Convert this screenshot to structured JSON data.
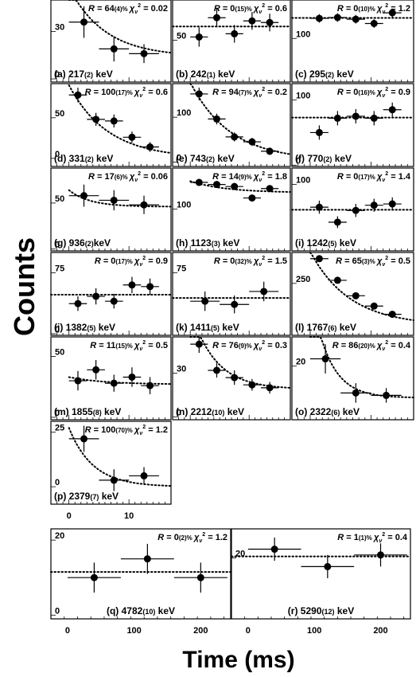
{
  "figure": {
    "ylabel": "Counts",
    "xlabel": "Time (ms)",
    "colors": {
      "frame": "#000000",
      "points": "#000000",
      "fit": "#000000",
      "background": "#ffffff"
    }
  },
  "chart_data": [
    {
      "id": "a",
      "type": "scatter",
      "label": "(a) 217(2) keV",
      "R": "64(4)%",
      "chi2": "0.02",
      "xlim": [
        -3,
        17
      ],
      "ylim": [
        -2,
        50
      ],
      "ytick_labels": [
        "0",
        "30"
      ],
      "yticks": [
        0,
        30
      ],
      "points": [
        {
          "x": 2.5,
          "y": 36,
          "xerr": 2.5,
          "yerr": 10
        },
        {
          "x": 7.5,
          "y": 19,
          "xerr": 2.5,
          "yerr": 8
        },
        {
          "x": 12.5,
          "y": 16,
          "xerr": 2.5,
          "yerr": 6
        }
      ],
      "fit": {
        "kind": "decay",
        "A": 44,
        "tau": 6,
        "B": 14
      }
    },
    {
      "id": "b",
      "type": "scatter",
      "label": "(b) 242(1) keV",
      "R": "0(15)%",
      "chi2": "0.6",
      "xlim": [
        -3,
        17
      ],
      "ylim": [
        -2,
        100
      ],
      "ytick_labels": [
        "50"
      ],
      "yticks": [
        50
      ],
      "points": [
        {
          "x": 1.5,
          "y": 54,
          "xerr": 1.5,
          "yerr": 12
        },
        {
          "x": 4.5,
          "y": 78,
          "xerr": 1.5,
          "yerr": 12
        },
        {
          "x": 7.5,
          "y": 58,
          "xerr": 1.5,
          "yerr": 11
        },
        {
          "x": 10.5,
          "y": 74,
          "xerr": 1.5,
          "yerr": 11
        },
        {
          "x": 13.5,
          "y": 72,
          "xerr": 1.5,
          "yerr": 11
        }
      ],
      "fit": {
        "kind": "flat",
        "B": 67
      }
    },
    {
      "id": "c",
      "type": "scatter",
      "label": "(c) 295(2) keV",
      "R": "0(10)%",
      "chi2": "1.2",
      "xlim": [
        -3,
        17
      ],
      "ylim": [
        -2,
        190
      ],
      "ytick_labels": [
        "100"
      ],
      "yticks": [
        100
      ],
      "points": [
        {
          "x": 1.5,
          "y": 147,
          "xerr": 1.5,
          "yerr": 10
        },
        {
          "x": 4.5,
          "y": 149,
          "xerr": 1.5,
          "yerr": 10
        },
        {
          "x": 7.5,
          "y": 145,
          "xerr": 1.5,
          "yerr": 10
        },
        {
          "x": 10.5,
          "y": 135,
          "xerr": 1.5,
          "yerr": 10
        },
        {
          "x": 13.5,
          "y": 160,
          "xerr": 1.5,
          "yerr": 10
        }
      ],
      "fit": {
        "kind": "flat",
        "B": 148
      }
    },
    {
      "id": "d",
      "type": "scatter",
      "label": "(d) 331(2) keV",
      "R": "100(17)%",
      "chi2": "0.6",
      "xlim": [
        -3,
        17
      ],
      "ylim": [
        -10,
        92
      ],
      "ytick_labels": [
        "0",
        "50"
      ],
      "yticks": [
        0,
        50
      ],
      "points": [
        {
          "x": 1.5,
          "y": 78,
          "xerr": 1.5,
          "yerr": 9
        },
        {
          "x": 4.5,
          "y": 48,
          "xerr": 1.5,
          "yerr": 8
        },
        {
          "x": 7.5,
          "y": 46,
          "xerr": 1.5,
          "yerr": 8
        },
        {
          "x": 10.5,
          "y": 26,
          "xerr": 1.5,
          "yerr": 7
        },
        {
          "x": 13.5,
          "y": 14,
          "xerr": 1.5,
          "yerr": 6
        }
      ],
      "fit": {
        "kind": "decay",
        "A": 90,
        "tau": 6.5,
        "B": 0
      }
    },
    {
      "id": "e",
      "type": "scatter",
      "label": "(e) 743(2) keV",
      "R": "94(7)%",
      "chi2": "0.2",
      "xlim": [
        -3,
        17
      ],
      "ylim": [
        -10,
        175
      ],
      "ytick_labels": [
        "0",
        "100"
      ],
      "yticks": [
        0,
        100
      ],
      "points": [
        {
          "x": 1.5,
          "y": 152,
          "xerr": 1.5,
          "yerr": 14
        },
        {
          "x": 4.5,
          "y": 96,
          "xerr": 1.5,
          "yerr": 12
        },
        {
          "x": 7.5,
          "y": 56,
          "xerr": 1.5,
          "yerr": 10
        },
        {
          "x": 10.5,
          "y": 45,
          "xerr": 1.5,
          "yerr": 9
        },
        {
          "x": 13.5,
          "y": 24,
          "xerr": 1.5,
          "yerr": 8
        }
      ],
      "fit": {
        "kind": "decay",
        "A": 175,
        "tau": 6.8,
        "B": 3
      }
    },
    {
      "id": "f",
      "type": "scatter",
      "label": "(f) 770(2) keV",
      "R": "0(16)%",
      "chi2": "0.9",
      "xlim": [
        -3,
        17
      ],
      "ylim": [
        -2,
        125
      ],
      "ytick_labels": [
        "0",
        "100"
      ],
      "yticks": [
        0,
        100
      ],
      "points": [
        {
          "x": 1.5,
          "y": 50,
          "xerr": 1.5,
          "yerr": 11
        },
        {
          "x": 4.5,
          "y": 72,
          "xerr": 1.5,
          "yerr": 11
        },
        {
          "x": 7.5,
          "y": 75,
          "xerr": 1.5,
          "yerr": 11
        },
        {
          "x": 10.5,
          "y": 72,
          "xerr": 1.5,
          "yerr": 11
        },
        {
          "x": 13.5,
          "y": 85,
          "xerr": 1.5,
          "yerr": 11
        }
      ],
      "fit": {
        "kind": "flat",
        "B": 73
      }
    },
    {
      "id": "g",
      "type": "scatter",
      "label": "(g) 936(2)keV",
      "R": "17(6)%",
      "chi2": "0.06",
      "xlim": [
        -3,
        17
      ],
      "ylim": [
        -2,
        88
      ],
      "ytick_labels": [
        "0",
        "50"
      ],
      "yticks": [
        0,
        50
      ],
      "points": [
        {
          "x": 2.5,
          "y": 58,
          "xerr": 2.5,
          "yerr": 12
        },
        {
          "x": 7.5,
          "y": 53,
          "xerr": 2.5,
          "yerr": 11
        },
        {
          "x": 12.5,
          "y": 48,
          "xerr": 2.5,
          "yerr": 10
        }
      ],
      "fit": {
        "kind": "decay",
        "A": 18,
        "tau": 3.5,
        "B": 46
      }
    },
    {
      "id": "h",
      "type": "scatter",
      "label": "(h) 1123(3) keV",
      "R": "14(9)%",
      "chi2": "1.8",
      "xlim": [
        -3,
        17
      ],
      "ylim": [
        -2,
        200
      ],
      "ytick_labels": [
        "100"
      ],
      "yticks": [
        100
      ],
      "points": [
        {
          "x": 1.5,
          "y": 165,
          "xerr": 1.5,
          "yerr": 8
        },
        {
          "x": 4.5,
          "y": 160,
          "xerr": 1.5,
          "yerr": 8
        },
        {
          "x": 7.5,
          "y": 155,
          "xerr": 1.5,
          "yerr": 8
        },
        {
          "x": 10.5,
          "y": 127,
          "xerr": 1.5,
          "yerr": 7
        },
        {
          "x": 13.5,
          "y": 150,
          "xerr": 1.5,
          "yerr": 8
        }
      ],
      "fit": {
        "kind": "decay",
        "A": 28,
        "tau": 6,
        "B": 140
      }
    },
    {
      "id": "i",
      "type": "scatter",
      "label": "(i) 1242(5) keV",
      "R": "0(17)%",
      "chi2": "1.4",
      "xlim": [
        -3,
        17
      ],
      "ylim": [
        -2,
        125
      ],
      "ytick_labels": [
        "100"
      ],
      "yticks": [
        100
      ],
      "points": [
        {
          "x": 1.5,
          "y": 65,
          "xerr": 1.5,
          "yerr": 10
        },
        {
          "x": 4.5,
          "y": 42,
          "xerr": 1.5,
          "yerr": 9
        },
        {
          "x": 7.5,
          "y": 60,
          "xerr": 1.5,
          "yerr": 10
        },
        {
          "x": 10.5,
          "y": 68,
          "xerr": 1.5,
          "yerr": 10
        },
        {
          "x": 13.5,
          "y": 70,
          "xerr": 1.5,
          "yerr": 10
        }
      ],
      "fit": {
        "kind": "flat",
        "B": 61
      }
    },
    {
      "id": "j",
      "type": "scatter",
      "label": "(j) 1382(5) keV",
      "R": "0(17)%",
      "chi2": "0.9",
      "xlim": [
        -3,
        17
      ],
      "ylim": [
        -2,
        100
      ],
      "ytick_labels": [
        "0",
        "75"
      ],
      "yticks": [
        0,
        75
      ],
      "points": [
        {
          "x": 1.5,
          "y": 37,
          "xerr": 1.5,
          "yerr": 9
        },
        {
          "x": 4.5,
          "y": 46,
          "xerr": 1.5,
          "yerr": 10
        },
        {
          "x": 7.5,
          "y": 40,
          "xerr": 1.5,
          "yerr": 9
        },
        {
          "x": 10.5,
          "y": 60,
          "xerr": 1.5,
          "yerr": 10
        },
        {
          "x": 13.5,
          "y": 58,
          "xerr": 1.5,
          "yerr": 10
        }
      ],
      "fit": {
        "kind": "flat",
        "B": 48
      }
    },
    {
      "id": "k",
      "type": "scatter",
      "label": "(k) 1411(5) keV",
      "R": "0(32)%",
      "chi2": "1.5",
      "xlim": [
        -3,
        17
      ],
      "ylim": [
        -2,
        100
      ],
      "ytick_labels": [
        "75"
      ],
      "yticks": [
        75
      ],
      "points": [
        {
          "x": 2.5,
          "y": 40,
          "xerr": 2.5,
          "yerr": 12
        },
        {
          "x": 7.5,
          "y": 36,
          "xerr": 2.5,
          "yerr": 11
        },
        {
          "x": 12.5,
          "y": 52,
          "xerr": 2.5,
          "yerr": 12
        }
      ],
      "fit": {
        "kind": "flat",
        "B": 44
      }
    },
    {
      "id": "l",
      "type": "scatter",
      "label": "(l) 1767(6) keV",
      "R": "65(3)%",
      "chi2": "0.5",
      "xlim": [
        -3,
        17
      ],
      "ylim": [
        -2,
        400
      ],
      "ytick_labels": [
        "250"
      ],
      "yticks": [
        250
      ],
      "points": [
        {
          "x": 1.5,
          "y": 370,
          "xerr": 1.5,
          "yerr": 12
        },
        {
          "x": 4.5,
          "y": 265,
          "xerr": 1.5,
          "yerr": 11
        },
        {
          "x": 7.5,
          "y": 190,
          "xerr": 1.5,
          "yerr": 10
        },
        {
          "x": 10.5,
          "y": 140,
          "xerr": 1.5,
          "yerr": 9
        },
        {
          "x": 13.5,
          "y": 100,
          "xerr": 1.5,
          "yerr": 8
        }
      ],
      "fit": {
        "kind": "decay",
        "A": 360,
        "tau": 6.5,
        "B": 45
      }
    },
    {
      "id": "m",
      "type": "scatter",
      "label": "(m) 1855(8) keV",
      "R": "11(15)%",
      "chi2": "0.5",
      "xlim": [
        -3,
        17
      ],
      "ylim": [
        -2,
        66
      ],
      "ytick_labels": [
        "0",
        "50"
      ],
      "yticks": [
        0,
        50
      ],
      "points": [
        {
          "x": 1.5,
          "y": 30,
          "xerr": 1.5,
          "yerr": 8
        },
        {
          "x": 4.5,
          "y": 39,
          "xerr": 1.5,
          "yerr": 8
        },
        {
          "x": 7.5,
          "y": 28,
          "xerr": 1.5,
          "yerr": 7
        },
        {
          "x": 10.5,
          "y": 33,
          "xerr": 1.5,
          "yerr": 8
        },
        {
          "x": 13.5,
          "y": 26,
          "xerr": 1.5,
          "yerr": 7
        }
      ],
      "fit": {
        "kind": "decay",
        "A": 6,
        "tau": 6,
        "B": 27
      }
    },
    {
      "id": "n",
      "type": "scatter",
      "label": "(n) 2212(10) keV",
      "R": "76(9)%",
      "chi2": "0.3",
      "xlim": [
        -3,
        17
      ],
      "ylim": [
        -2,
        55
      ],
      "ytick_labels": [
        "0",
        "30"
      ],
      "yticks": [
        0,
        30
      ],
      "points": [
        {
          "x": 1.5,
          "y": 50,
          "xerr": 1.5,
          "yerr": 6
        },
        {
          "x": 4.5,
          "y": 32,
          "xerr": 1.5,
          "yerr": 5
        },
        {
          "x": 7.5,
          "y": 27,
          "xerr": 1.5,
          "yerr": 5
        },
        {
          "x": 10.5,
          "y": 22,
          "xerr": 1.5,
          "yerr": 4
        },
        {
          "x": 13.5,
          "y": 20,
          "xerr": 1.5,
          "yerr": 4
        }
      ],
      "fit": {
        "kind": "decay",
        "A": 55,
        "tau": 4.2,
        "B": 19
      }
    },
    {
      "id": "o",
      "type": "scatter",
      "label": "(o) 2322(6) keV",
      "R": "86(20)%",
      "chi2": "0.4",
      "xlim": [
        -3,
        17
      ],
      "ylim": [
        -2,
        32
      ],
      "ytick_labels": [
        "20"
      ],
      "yticks": [
        20
      ],
      "points": [
        {
          "x": 2.5,
          "y": 23,
          "xerr": 2.5,
          "yerr": 6
        },
        {
          "x": 7.5,
          "y": 9,
          "xerr": 2.5,
          "yerr": 4
        },
        {
          "x": 12.5,
          "y": 8,
          "xerr": 2.5,
          "yerr": 3
        }
      ],
      "fit": {
        "kind": "decay",
        "A": 45,
        "tau": 3,
        "B": 7
      }
    },
    {
      "id": "p",
      "type": "scatter",
      "label": "(p) 2379(7) keV",
      "R": "100(70)%",
      "chi2": "1.2",
      "xlim": [
        -3,
        17
      ],
      "ylim": [
        -8,
        30
      ],
      "ytick_labels": [
        "0",
        "25"
      ],
      "yticks": [
        0,
        25
      ],
      "xtick_labels": [
        "0",
        "10"
      ],
      "xticks": [
        0,
        10
      ],
      "points": [
        {
          "x": 2.5,
          "y": 22,
          "xerr": 2.5,
          "yerr": 6
        },
        {
          "x": 7.5,
          "y": 3,
          "xerr": 2.5,
          "yerr": 5
        },
        {
          "x": 12.5,
          "y": 5,
          "xerr": 2.5,
          "yerr": 4
        }
      ],
      "fit": {
        "kind": "decay",
        "A": 27,
        "tau": 4,
        "B": 0
      }
    },
    {
      "id": "q",
      "type": "scatter",
      "label": "(q) 4782(10) keV",
      "R": "0(2)%",
      "chi2": "1.2",
      "xlim": [
        -25,
        245
      ],
      "ylim": [
        -1,
        23
      ],
      "ytick_labels": [
        "0",
        "20"
      ],
      "yticks": [
        0,
        20
      ],
      "xtick_labels": [
        "0",
        "100",
        "200"
      ],
      "xticks": [
        0,
        100,
        200
      ],
      "points": [
        {
          "x": 40,
          "y": 10,
          "xerr": 40,
          "yerr": 4
        },
        {
          "x": 120,
          "y": 15,
          "xerr": 40,
          "yerr": 4
        },
        {
          "x": 200,
          "y": 10,
          "xerr": 40,
          "yerr": 4
        }
      ],
      "fit": {
        "kind": "flat",
        "B": 11.5
      }
    },
    {
      "id": "r",
      "type": "scatter",
      "label": "(r) 5290(12) keV",
      "R": "1(1)%",
      "chi2": "0.4",
      "xlim": [
        -25,
        245
      ],
      "ylim": [
        -1,
        30
      ],
      "ytick_labels": [
        "20"
      ],
      "yticks": [
        20
      ],
      "xtick_labels": [
        "0",
        "100",
        "200"
      ],
      "xticks": [
        0,
        100,
        200
      ],
      "points": [
        {
          "x": 40,
          "y": 23,
          "xerr": 40,
          "yerr": 4
        },
        {
          "x": 120,
          "y": 17,
          "xerr": 40,
          "yerr": 4
        },
        {
          "x": 200,
          "y": 21,
          "xerr": 40,
          "yerr": 4
        }
      ],
      "fit": {
        "kind": "flat",
        "B": 20.5
      }
    }
  ]
}
